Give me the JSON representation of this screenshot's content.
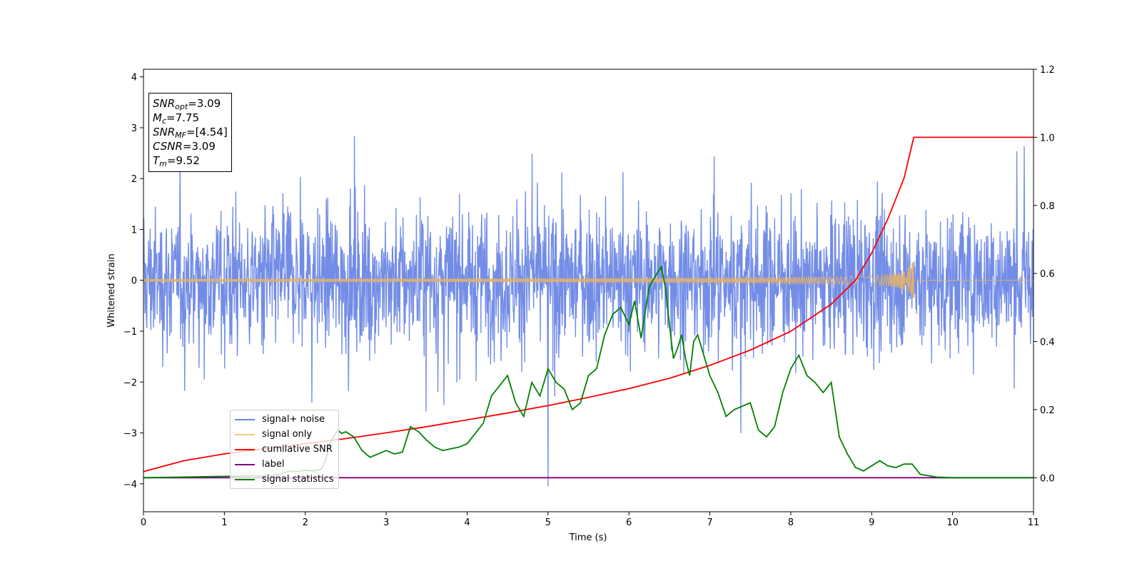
{
  "chart_data": {
    "type": "line",
    "xlabel": "Time (s)",
    "ylabel": "Whitened strain",
    "xlim": [
      0,
      11
    ],
    "ylim_left": [
      -4.55,
      4.15
    ],
    "ylim_right": [
      -0.1,
      1.2
    ],
    "x_ticks": [
      "0",
      "1",
      "2",
      "3",
      "4",
      "5",
      "6",
      "7",
      "8",
      "9",
      "10",
      "11"
    ],
    "y_ticks_left": [
      "−4",
      "−3",
      "−2",
      "−1",
      "0",
      "1",
      "2",
      "3",
      "4"
    ],
    "y_ticks_right": [
      "0.0",
      "0.2",
      "0.4",
      "0.6",
      "0.8",
      "1.0",
      "1.2"
    ],
    "series": [
      {
        "name": "signal+ noise",
        "axis": "left",
        "color": "#6b87e6",
        "description_values": {
          "typical_range": [
            -2.2,
            2.2
          ],
          "max": 3.55,
          "min": -4.05,
          "x_of_min": 5.0
        }
      },
      {
        "name": "signal only",
        "axis": "left",
        "color": "#e0b070",
        "chirp_end_time": 9.52,
        "peak_amplitude": 0.45
      },
      {
        "name": "cumilative SNR",
        "axis": "right",
        "color": "#ff0000",
        "x": [
          0,
          0.5,
          1,
          1.5,
          2,
          2.5,
          3,
          3.5,
          4,
          4.5,
          5,
          5.5,
          6,
          6.5,
          7,
          7.5,
          8,
          8.5,
          8.8,
          9,
          9.2,
          9.4,
          9.52,
          11
        ],
        "y": [
          0.018,
          0.05,
          0.07,
          0.085,
          0.1,
          0.115,
          0.132,
          0.15,
          0.17,
          0.19,
          0.212,
          0.236,
          0.262,
          0.292,
          0.33,
          0.375,
          0.43,
          0.51,
          0.58,
          0.66,
          0.76,
          0.88,
          1.0,
          1.0
        ]
      },
      {
        "name": "label",
        "axis": "right",
        "color": "#800080",
        "x": [
          0,
          11
        ],
        "y": [
          0.0,
          0.0
        ]
      },
      {
        "name": "signal statistics",
        "axis": "right",
        "color": "#008000",
        "x": [
          0,
          0.5,
          1.0,
          1.5,
          1.7,
          1.8,
          1.9,
          2.0,
          2.1,
          2.2,
          2.25,
          2.3,
          2.4,
          2.45,
          2.5,
          2.6,
          2.7,
          2.8,
          2.9,
          3.0,
          3.1,
          3.2,
          3.3,
          3.4,
          3.5,
          3.6,
          3.7,
          3.8,
          3.9,
          4.0,
          4.1,
          4.2,
          4.3,
          4.4,
          4.5,
          4.6,
          4.7,
          4.8,
          4.9,
          5.0,
          5.1,
          5.2,
          5.3,
          5.4,
          5.5,
          5.6,
          5.7,
          5.8,
          5.9,
          6.0,
          6.07,
          6.15,
          6.25,
          6.32,
          6.4,
          6.45,
          6.5,
          6.55,
          6.6,
          6.65,
          6.7,
          6.75,
          6.8,
          6.85,
          6.9,
          7.0,
          7.1,
          7.2,
          7.3,
          7.4,
          7.5,
          7.6,
          7.7,
          7.8,
          7.9,
          8.0,
          8.1,
          8.2,
          8.3,
          8.4,
          8.5,
          8.6,
          8.7,
          8.8,
          8.9,
          9.0,
          9.1,
          9.2,
          9.3,
          9.4,
          9.5,
          9.6,
          9.8,
          10.0,
          10.5,
          11.0
        ],
        "y": [
          0.0,
          0.002,
          0.004,
          0.005,
          0.01,
          0.02,
          0.018,
          0.022,
          0.02,
          0.025,
          0.05,
          0.1,
          0.14,
          0.13,
          0.135,
          0.12,
          0.08,
          0.06,
          0.07,
          0.08,
          0.07,
          0.075,
          0.15,
          0.135,
          0.11,
          0.09,
          0.08,
          0.085,
          0.09,
          0.1,
          0.13,
          0.16,
          0.24,
          0.27,
          0.3,
          0.22,
          0.18,
          0.28,
          0.24,
          0.32,
          0.28,
          0.26,
          0.2,
          0.22,
          0.3,
          0.32,
          0.42,
          0.48,
          0.5,
          0.45,
          0.52,
          0.41,
          0.56,
          0.59,
          0.62,
          0.56,
          0.45,
          0.35,
          0.38,
          0.42,
          0.35,
          0.3,
          0.4,
          0.42,
          0.38,
          0.3,
          0.25,
          0.18,
          0.2,
          0.21,
          0.22,
          0.14,
          0.12,
          0.15,
          0.25,
          0.32,
          0.36,
          0.3,
          0.28,
          0.25,
          0.28,
          0.12,
          0.07,
          0.03,
          0.02,
          0.035,
          0.05,
          0.035,
          0.03,
          0.04,
          0.04,
          0.01,
          0.002,
          0.0,
          0.0,
          0.0
        ]
      }
    ],
    "legend": {
      "placement": "lower-left",
      "entries": [
        {
          "label": "signal+ noise",
          "color": "#6b87e6"
        },
        {
          "label": "signal only",
          "color": "#f5c87a"
        },
        {
          "label": "cumilative SNR",
          "color": "#ff0000"
        },
        {
          "label": "label",
          "color": "#800080"
        },
        {
          "label": "signal statistics",
          "color": "#008000"
        }
      ]
    },
    "annotation_box": {
      "placement": "upper-left",
      "snr_opt": "=3.09",
      "mc": "=7.75",
      "snr_mf": "=[4.54]",
      "csnr": "=3.09",
      "tm": "=9.52"
    }
  }
}
